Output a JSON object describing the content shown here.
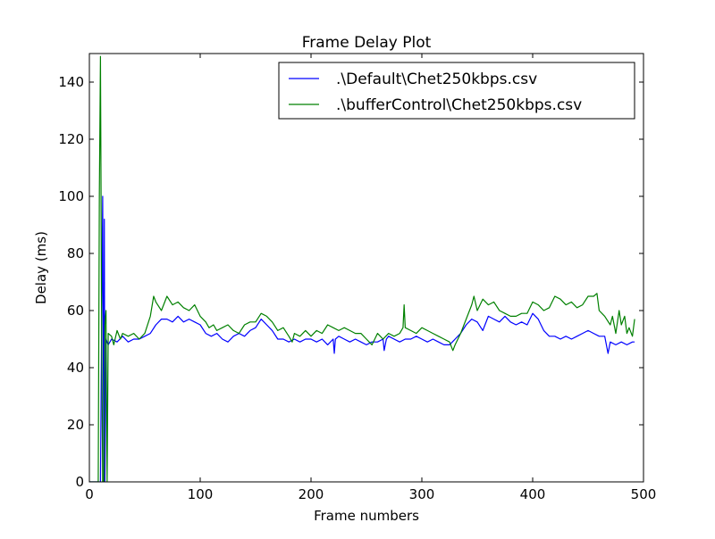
{
  "chart_data": {
    "type": "line",
    "title": "Frame Delay Plot",
    "xlabel": "Frame numbers",
    "ylabel": "Delay (ms)",
    "xlim": [
      0,
      500
    ],
    "ylim": [
      0,
      150
    ],
    "xticks": [
      {
        "value": 0,
        "label": "0"
      },
      {
        "value": 100,
        "label": "100"
      },
      {
        "value": 200,
        "label": "200"
      },
      {
        "value": 300,
        "label": "300"
      },
      {
        "value": 400,
        "label": "400"
      },
      {
        "value": 500,
        "label": "500"
      }
    ],
    "yticks": [
      {
        "value": 0,
        "label": "0"
      },
      {
        "value": 20,
        "label": "20"
      },
      {
        "value": 40,
        "label": "40"
      },
      {
        "value": 60,
        "label": "60"
      },
      {
        "value": 80,
        "label": "80"
      },
      {
        "value": 100,
        "label": "100"
      },
      {
        "value": 120,
        "label": "120"
      },
      {
        "value": 140,
        "label": "140"
      }
    ],
    "grid": false,
    "legend_position": "top-right",
    "series": [
      {
        "name": ".\\Default\\Chet250kbps.csv",
        "color": "#0000ff",
        "points": [
          [
            0,
            0
          ],
          [
            10,
            0
          ],
          [
            11,
            50
          ],
          [
            12,
            100
          ],
          [
            13,
            0
          ],
          [
            13.5,
            92
          ],
          [
            14,
            0
          ],
          [
            15,
            50
          ],
          [
            17,
            48
          ],
          [
            20,
            50
          ],
          [
            25,
            49
          ],
          [
            30,
            51
          ],
          [
            35,
            49
          ],
          [
            40,
            50
          ],
          [
            45,
            50
          ],
          [
            50,
            51
          ],
          [
            55,
            52
          ],
          [
            60,
            55
          ],
          [
            65,
            57
          ],
          [
            70,
            57
          ],
          [
            75,
            56
          ],
          [
            80,
            58
          ],
          [
            85,
            56
          ],
          [
            90,
            57
          ],
          [
            95,
            56
          ],
          [
            100,
            55
          ],
          [
            105,
            52
          ],
          [
            110,
            51
          ],
          [
            115,
            52
          ],
          [
            120,
            50
          ],
          [
            125,
            49
          ],
          [
            130,
            51
          ],
          [
            135,
            52
          ],
          [
            140,
            51
          ],
          [
            145,
            53
          ],
          [
            150,
            54
          ],
          [
            155,
            57
          ],
          [
            160,
            55
          ],
          [
            165,
            53
          ],
          [
            170,
            50
          ],
          [
            175,
            50
          ],
          [
            180,
            49
          ],
          [
            185,
            50
          ],
          [
            190,
            49
          ],
          [
            195,
            50
          ],
          [
            200,
            50
          ],
          [
            205,
            49
          ],
          [
            210,
            50
          ],
          [
            215,
            48
          ],
          [
            220,
            50
          ],
          [
            221,
            45
          ],
          [
            222,
            50
          ],
          [
            225,
            51
          ],
          [
            230,
            50
          ],
          [
            235,
            49
          ],
          [
            240,
            50
          ],
          [
            245,
            49
          ],
          [
            250,
            48
          ],
          [
            255,
            49
          ],
          [
            260,
            49
          ],
          [
            265,
            50
          ],
          [
            266,
            46
          ],
          [
            268,
            50
          ],
          [
            270,
            51
          ],
          [
            275,
            50
          ],
          [
            280,
            49
          ],
          [
            285,
            50
          ],
          [
            290,
            50
          ],
          [
            295,
            51
          ],
          [
            300,
            50
          ],
          [
            305,
            49
          ],
          [
            310,
            50
          ],
          [
            315,
            49
          ],
          [
            320,
            48
          ],
          [
            325,
            48
          ],
          [
            330,
            50
          ],
          [
            335,
            52
          ],
          [
            340,
            55
          ],
          [
            345,
            57
          ],
          [
            350,
            56
          ],
          [
            355,
            53
          ],
          [
            360,
            58
          ],
          [
            365,
            57
          ],
          [
            370,
            56
          ],
          [
            375,
            58
          ],
          [
            380,
            56
          ],
          [
            385,
            55
          ],
          [
            390,
            56
          ],
          [
            395,
            55
          ],
          [
            400,
            59
          ],
          [
            405,
            57
          ],
          [
            410,
            53
          ],
          [
            415,
            51
          ],
          [
            420,
            51
          ],
          [
            425,
            50
          ],
          [
            430,
            51
          ],
          [
            435,
            50
          ],
          [
            440,
            51
          ],
          [
            445,
            52
          ],
          [
            450,
            53
          ],
          [
            455,
            52
          ],
          [
            460,
            51
          ],
          [
            465,
            51
          ],
          [
            468,
            45
          ],
          [
            470,
            49
          ],
          [
            475,
            48
          ],
          [
            480,
            49
          ],
          [
            485,
            48
          ],
          [
            490,
            49
          ],
          [
            492,
            49
          ]
        ]
      },
      {
        "name": ".\\bufferControl\\Chet250kbps.csv",
        "color": "#008000",
        "points": [
          [
            0,
            0
          ],
          [
            8,
            0
          ],
          [
            9,
            100
          ],
          [
            10,
            149
          ],
          [
            11,
            60
          ],
          [
            12,
            0
          ],
          [
            13,
            0
          ],
          [
            14,
            55
          ],
          [
            15,
            60
          ],
          [
            16,
            0
          ],
          [
            17,
            52
          ],
          [
            20,
            51
          ],
          [
            22,
            48
          ],
          [
            25,
            53
          ],
          [
            28,
            50
          ],
          [
            30,
            52
          ],
          [
            35,
            51
          ],
          [
            40,
            52
          ],
          [
            45,
            50
          ],
          [
            50,
            52
          ],
          [
            55,
            58
          ],
          [
            58,
            65
          ],
          [
            60,
            63
          ],
          [
            65,
            60
          ],
          [
            70,
            65
          ],
          [
            75,
            62
          ],
          [
            80,
            63
          ],
          [
            85,
            61
          ],
          [
            90,
            60
          ],
          [
            95,
            62
          ],
          [
            100,
            58
          ],
          [
            105,
            56
          ],
          [
            108,
            54
          ],
          [
            112,
            55
          ],
          [
            115,
            53
          ],
          [
            120,
            54
          ],
          [
            125,
            55
          ],
          [
            130,
            53
          ],
          [
            135,
            52
          ],
          [
            140,
            55
          ],
          [
            145,
            56
          ],
          [
            150,
            56
          ],
          [
            155,
            59
          ],
          [
            160,
            58
          ],
          [
            165,
            56
          ],
          [
            170,
            53
          ],
          [
            175,
            54
          ],
          [
            180,
            51
          ],
          [
            183,
            49
          ],
          [
            185,
            52
          ],
          [
            190,
            51
          ],
          [
            195,
            53
          ],
          [
            200,
            51
          ],
          [
            205,
            53
          ],
          [
            210,
            52
          ],
          [
            215,
            55
          ],
          [
            220,
            54
          ],
          [
            225,
            53
          ],
          [
            230,
            54
          ],
          [
            235,
            53
          ],
          [
            240,
            52
          ],
          [
            245,
            52
          ],
          [
            250,
            50
          ],
          [
            255,
            48
          ],
          [
            260,
            52
          ],
          [
            265,
            50
          ],
          [
            270,
            52
          ],
          [
            275,
            51
          ],
          [
            280,
            52
          ],
          [
            283,
            54
          ],
          [
            284,
            62
          ],
          [
            285,
            54
          ],
          [
            290,
            53
          ],
          [
            295,
            52
          ],
          [
            300,
            54
          ],
          [
            305,
            53
          ],
          [
            310,
            52
          ],
          [
            315,
            51
          ],
          [
            320,
            50
          ],
          [
            325,
            49
          ],
          [
            328,
            46
          ],
          [
            330,
            48
          ],
          [
            335,
            52
          ],
          [
            340,
            57
          ],
          [
            345,
            62
          ],
          [
            347,
            65
          ],
          [
            350,
            60
          ],
          [
            355,
            64
          ],
          [
            360,
            62
          ],
          [
            365,
            63
          ],
          [
            370,
            60
          ],
          [
            375,
            59
          ],
          [
            380,
            58
          ],
          [
            385,
            58
          ],
          [
            390,
            59
          ],
          [
            395,
            59
          ],
          [
            400,
            63
          ],
          [
            405,
            62
          ],
          [
            410,
            60
          ],
          [
            415,
            61
          ],
          [
            420,
            65
          ],
          [
            425,
            64
          ],
          [
            430,
            62
          ],
          [
            435,
            63
          ],
          [
            440,
            61
          ],
          [
            445,
            62
          ],
          [
            450,
            65
          ],
          [
            455,
            65
          ],
          [
            458,
            66
          ],
          [
            460,
            60
          ],
          [
            465,
            58
          ],
          [
            470,
            55
          ],
          [
            472,
            58
          ],
          [
            475,
            52
          ],
          [
            478,
            60
          ],
          [
            480,
            55
          ],
          [
            483,
            58
          ],
          [
            485,
            52
          ],
          [
            487,
            54
          ],
          [
            490,
            51
          ],
          [
            492,
            57
          ]
        ]
      }
    ]
  }
}
